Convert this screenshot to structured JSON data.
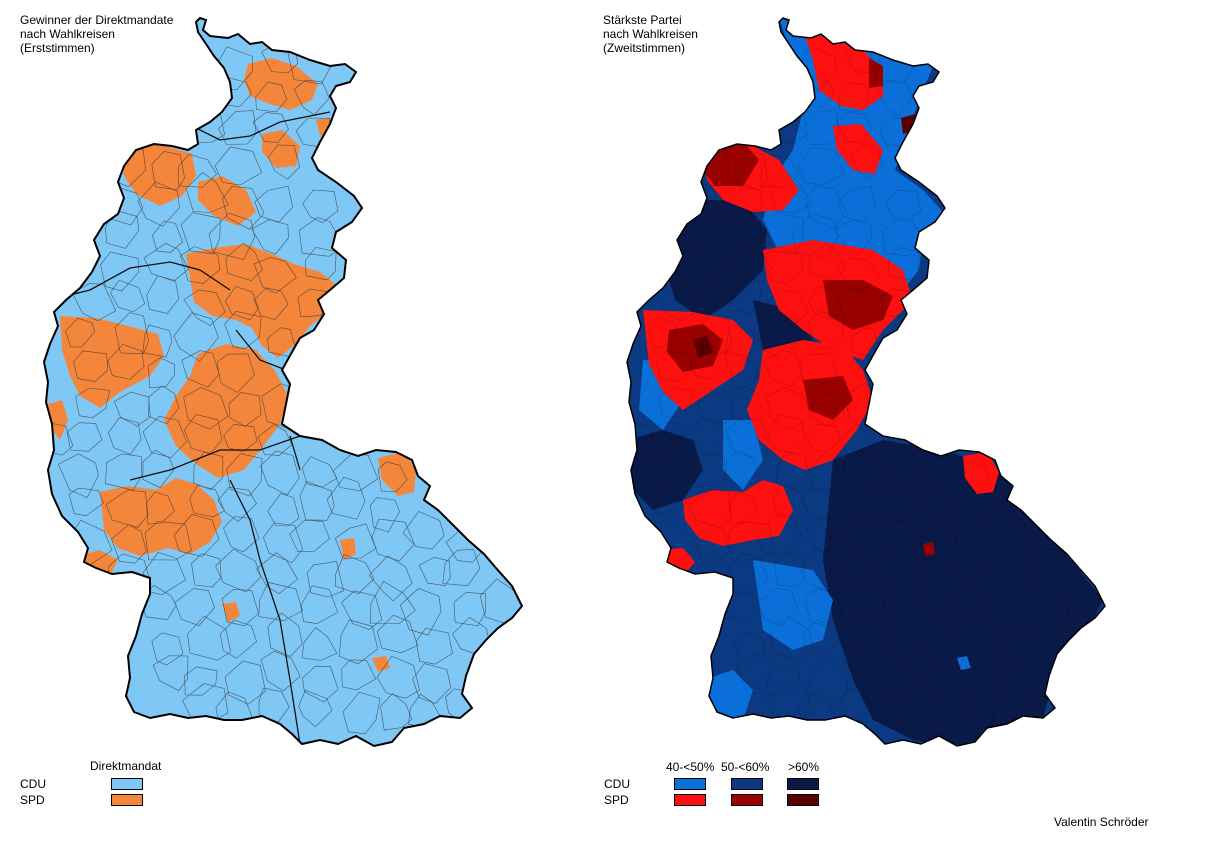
{
  "maps": [
    {
      "title_lines": [
        "Gewinner der Direktmandate",
        "nach Wahlkreisen",
        "(Erststimmen)"
      ]
    },
    {
      "title_lines": [
        "Stärkste Partei",
        "nach Wahlkreisen",
        "(Zweitstimmen)"
      ]
    }
  ],
  "legend_left": {
    "header": "Direktmandat",
    "rows": [
      {
        "party": "CDU",
        "color": "#7fc8f5"
      },
      {
        "party": "SPD",
        "color": "#f4863c"
      }
    ]
  },
  "legend_right": {
    "columns": [
      "40-<50%",
      "50-<60%",
      ">60%"
    ],
    "rows": [
      {
        "party": "CDU",
        "colors": [
          "#0a6fd8",
          "#0b3a82",
          "#0a1a48"
        ]
      },
      {
        "party": "SPD",
        "colors": [
          "#ff1010",
          "#990000",
          "#5a0000"
        ]
      }
    ]
  },
  "author": "Valentin Schröder",
  "colors": {
    "cdu_light": "#7fc8f5",
    "spd_orange": "#f4863c",
    "cdu_mid": "#0a6fd8",
    "cdu_dark": "#0b3a82",
    "cdu_darkest": "#0a1a48",
    "spd_red": "#ff1010",
    "spd_dark": "#990000",
    "spd_darkest": "#5a0000"
  }
}
